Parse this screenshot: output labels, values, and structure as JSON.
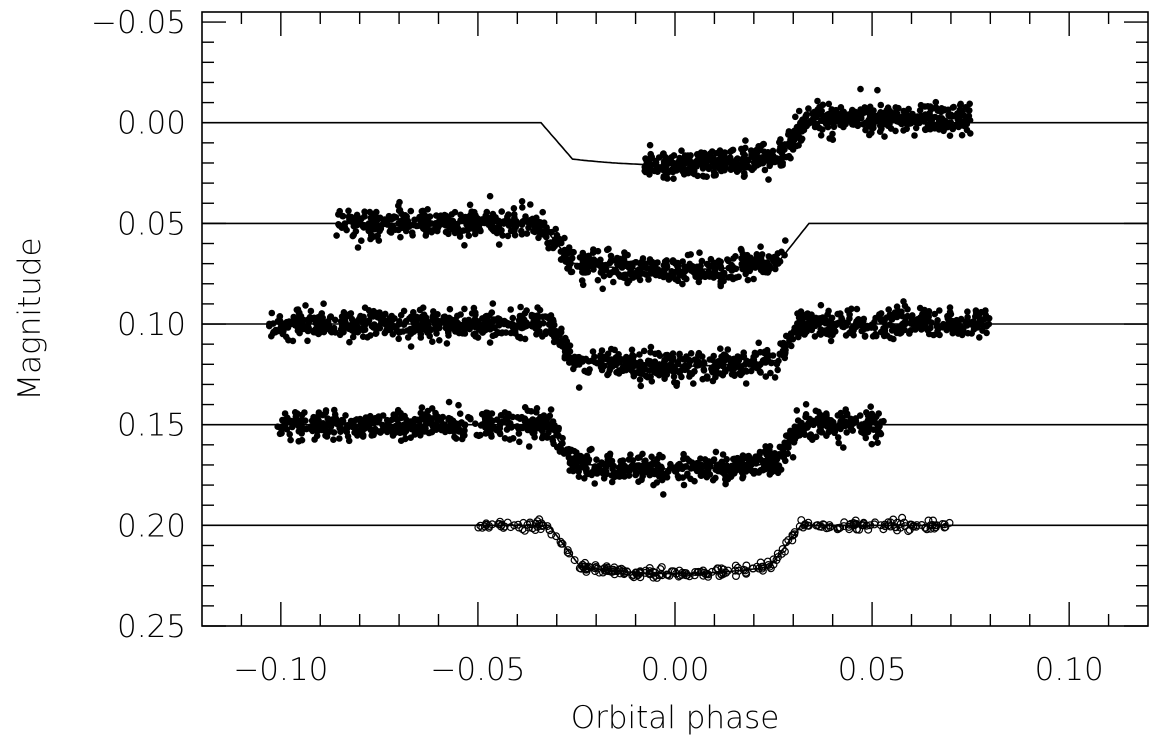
{
  "chart_data": {
    "type": "scatter",
    "xlabel": "Orbital phase",
    "ylabel": "Magnitude",
    "xlim": [
      -0.12,
      0.12
    ],
    "ylim": [
      0.25,
      -0.055
    ],
    "y_inverted": true,
    "grid": false,
    "x_ticks": [
      {
        "value": -0.1,
        "label": "−0.10"
      },
      {
        "value": -0.05,
        "label": "−0.05"
      },
      {
        "value": 0.0,
        "label": "0.00"
      },
      {
        "value": 0.05,
        "label": "0.05"
      },
      {
        "value": 0.1,
        "label": "0.10"
      }
    ],
    "x_minor_step": 0.01,
    "y_ticks": [
      {
        "value": -0.05,
        "label": "−0.05"
      },
      {
        "value": 0.0,
        "label": "0.00"
      },
      {
        "value": 0.05,
        "label": "0.05"
      },
      {
        "value": 0.1,
        "label": "0.10"
      },
      {
        "value": 0.15,
        "label": "0.15"
      },
      {
        "value": 0.2,
        "label": "0.20"
      },
      {
        "value": 0.25,
        "label": "0.25"
      }
    ],
    "y_minor_step": 0.01,
    "series": [
      {
        "marker": "filled",
        "offset": 0.0,
        "x_range": [
          -0.008,
          0.075
        ],
        "noise": 0.0035,
        "n_points": 700,
        "model": {
          "ingress": [
            -0.034,
            -0.026
          ],
          "egress": [
            0.026,
            0.034
          ],
          "depth": 0.021,
          "line_x": [
            -0.12,
            0.12
          ],
          "flat_rest": false
        }
      },
      {
        "marker": "filled",
        "offset": 0.05,
        "x_range": [
          -0.086,
          0.028
        ],
        "noise": 0.0035,
        "n_points": 700,
        "model": {
          "ingress": [
            -0.034,
            -0.026
          ],
          "egress": [
            0.026,
            0.034
          ],
          "depth": 0.023,
          "line_x": [
            -0.12,
            0.12
          ],
          "flat_rest": true
        }
      },
      {
        "marker": "filled",
        "offset": 0.1,
        "x_range": [
          -0.103,
          0.08
        ],
        "noise": 0.0035,
        "n_points": 1200,
        "model": {
          "ingress": [
            -0.032,
            -0.026
          ],
          "egress": [
            0.026,
            0.032
          ],
          "depth": 0.021,
          "line_x": [
            -0.12,
            0.12
          ],
          "flat_rest": false
        }
      },
      {
        "marker": "filled",
        "offset": 0.15,
        "x_range": [
          -0.101,
          0.053
        ],
        "noise": 0.0035,
        "n_points": 1000,
        "model": {
          "ingress": [
            -0.032,
            -0.026
          ],
          "egress": [
            0.026,
            0.032
          ],
          "depth": 0.022,
          "line_x": [
            -0.12,
            0.12
          ],
          "flat_rest": false
        }
      },
      {
        "marker": "open",
        "offset": 0.2,
        "x_range": [
          -0.05,
          0.07
        ],
        "noise": 0.0012,
        "n_points": 300,
        "model": {
          "ingress": [
            -0.032,
            -0.024
          ],
          "egress": [
            0.024,
            0.032
          ],
          "depth": 0.024,
          "line_x": [
            -0.12,
            0.12
          ],
          "flat_rest": false
        }
      }
    ]
  }
}
